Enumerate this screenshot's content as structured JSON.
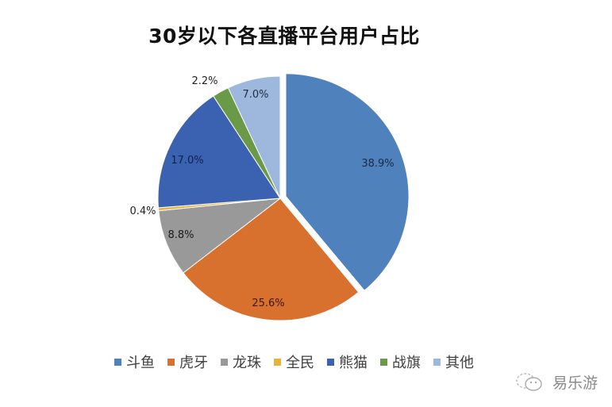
{
  "chart_data": {
    "type": "pie",
    "title": "30岁以下各直播平台用户占比",
    "categories": [
      "斗鱼",
      "虎牙",
      "龙珠",
      "全民",
      "熊猫",
      "战旗",
      "其他"
    ],
    "values": [
      38.9,
      25.6,
      8.8,
      0.4,
      17.0,
      2.2,
      7.0
    ],
    "labels": [
      "38.9%",
      "25.6%",
      "8.8%",
      "0.4%",
      "17.0%",
      "2.2%",
      "7.0%"
    ],
    "colors": [
      "#4f81bd",
      "#d8702e",
      "#999999",
      "#e8b33a",
      "#3b62b0",
      "#6a9a48",
      "#9db8dc"
    ],
    "exploded": [
      "斗鱼"
    ],
    "start_angle": "12 o'clock",
    "direction": "clockwise",
    "legend_position": "bottom",
    "unit": "%"
  },
  "title": "30岁以下各直播平台用户占比",
  "legend": [
    {
      "label": "斗鱼",
      "color": "#4f81bd"
    },
    {
      "label": "虎牙",
      "color": "#d8702e"
    },
    {
      "label": "龙珠",
      "color": "#999999"
    },
    {
      "label": "全民",
      "color": "#e8b33a"
    },
    {
      "label": "熊猫",
      "color": "#3b62b0"
    },
    {
      "label": "战旗",
      "color": "#6a9a48"
    },
    {
      "label": "其他",
      "color": "#9db8dc"
    }
  ],
  "watermark": {
    "text": "易乐游",
    "icon": "wechat-icon"
  }
}
